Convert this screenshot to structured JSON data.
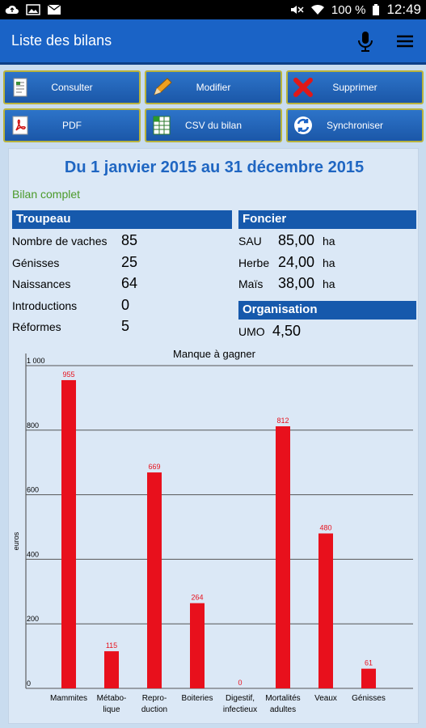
{
  "status_bar": {
    "battery": "100 %",
    "time": "12:49"
  },
  "appbar": {
    "title": "Liste des bilans"
  },
  "buttons": [
    {
      "label": "Consulter",
      "icon": "document-icon"
    },
    {
      "label": "Modifier",
      "icon": "pencil-icon"
    },
    {
      "label": "Supprimer",
      "icon": "red-x-icon"
    },
    {
      "label": "PDF",
      "icon": "pdf-icon"
    },
    {
      "label": "CSV du bilan",
      "icon": "spreadsheet-icon"
    },
    {
      "label": "Synchroniser",
      "icon": "sync-icon"
    }
  ],
  "bilan": {
    "period": "Du 1 janvier 2015 au 31 décembre 2015",
    "type": "Bilan complet",
    "troupeau": {
      "title": "Troupeau",
      "rows": [
        {
          "label": "Nombre de vaches",
          "value": "85"
        },
        {
          "label": "Génisses",
          "value": "25"
        },
        {
          "label": "Naissances",
          "value": "64"
        },
        {
          "label": "Introductions",
          "value": "0"
        },
        {
          "label": "Réformes",
          "value": "5"
        }
      ]
    },
    "foncier": {
      "title": "Foncier",
      "rows": [
        {
          "label": "SAU",
          "value": "85,00",
          "unit": "ha"
        },
        {
          "label": "Herbe",
          "value": "24,00",
          "unit": "ha"
        },
        {
          "label": "Maïs",
          "value": "38,00",
          "unit": "ha"
        }
      ]
    },
    "organisation": {
      "title": "Organisation",
      "rows": [
        {
          "label": "UMO",
          "value": "4,50"
        }
      ]
    }
  },
  "chart_data": {
    "type": "bar",
    "title": "Manque à gagner",
    "ylabel": "euros",
    "xlabel": "",
    "ylim": [
      0,
      1000
    ],
    "yticks": [
      0,
      200,
      400,
      600,
      800,
      1000
    ],
    "ytick_labels": [
      "0",
      "200",
      "400",
      "600",
      "800",
      "1 000"
    ],
    "grid": true,
    "bar_color": "#e8101c",
    "categories": [
      [
        "Mammites"
      ],
      [
        "Métabo-",
        "lique"
      ],
      [
        "Repro-",
        "duction"
      ],
      [
        "Boiteries"
      ],
      [
        "Digestif,",
        "infectieux"
      ],
      [
        "Mortalités",
        "adultes"
      ],
      [
        "Veaux"
      ],
      [
        "Génisses"
      ]
    ],
    "values": [
      955,
      115,
      669,
      264,
      0,
      812,
      480,
      61
    ],
    "value_labels": [
      "955",
      "115",
      "669",
      "264",
      "0",
      "812",
      "480",
      "61"
    ]
  }
}
